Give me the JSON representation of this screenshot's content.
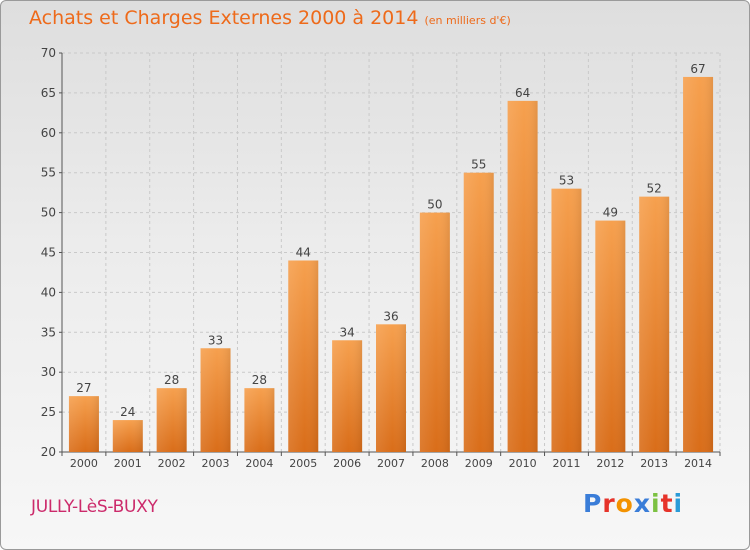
{
  "colors": {
    "title": "#ee6a1a",
    "bar_top": "#f6a04e",
    "bar_bottom": "#d96d19",
    "town": "#cc2a6b",
    "logo": [
      "#3a7dd8",
      "#e6332a",
      "#f39200",
      "#3a7dd8",
      "#7cc142",
      "#e6332a",
      "#2a9bd8"
    ]
  },
  "header": {
    "title": "Achats et Charges Externes 2000 à 2014",
    "unit": "(en milliers d'€)"
  },
  "footer": {
    "town": "JULLY-LèS-BUXY",
    "logo_letters": [
      "P",
      "r",
      "o",
      "x",
      "i",
      "t",
      "i"
    ]
  },
  "chart_data": {
    "type": "bar",
    "title": "Achats et Charges Externes 2000 à 2014",
    "subtitle": "(en milliers d'€)",
    "categories": [
      "2000",
      "2001",
      "2002",
      "2003",
      "2004",
      "2005",
      "2006",
      "2007",
      "2008",
      "2009",
      "2010",
      "2011",
      "2012",
      "2013",
      "2014"
    ],
    "values": [
      27,
      24,
      28,
      33,
      28,
      44,
      34,
      36,
      50,
      55,
      64,
      53,
      49,
      52,
      67
    ],
    "ylim": [
      20,
      70
    ],
    "yticks": [
      20,
      25,
      30,
      35,
      40,
      45,
      50,
      55,
      60,
      65,
      70
    ],
    "grid": true,
    "data_labels": true
  }
}
